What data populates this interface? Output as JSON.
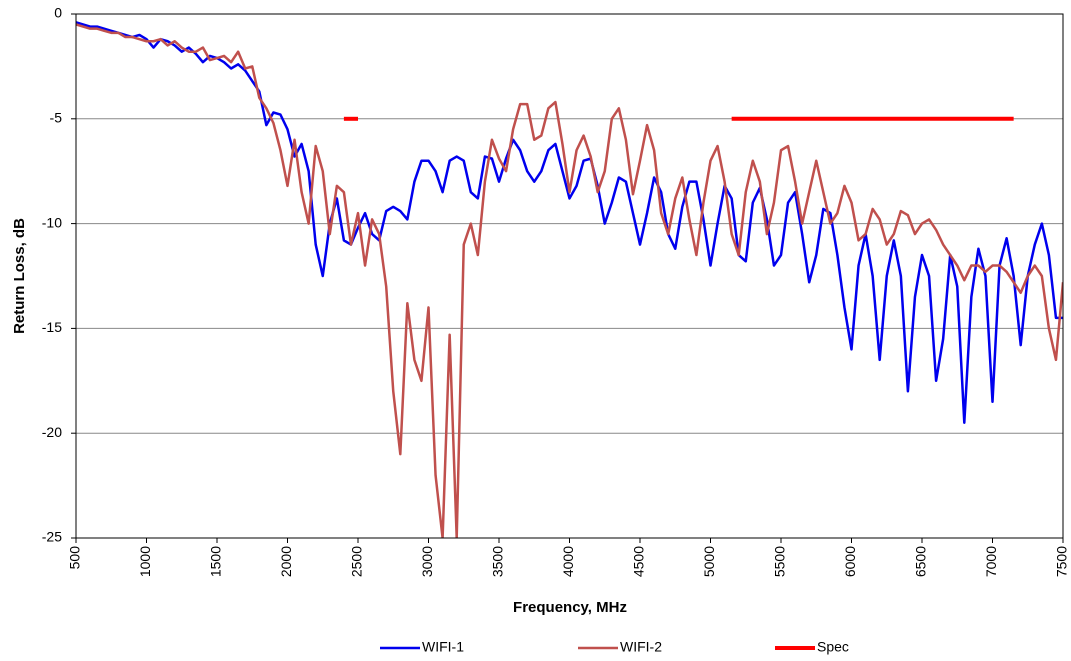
{
  "chart_data": {
    "type": "line",
    "xlabel": "Frequency, MHz",
    "ylabel": "Return Loss, dB",
    "x": [
      500,
      550,
      600,
      650,
      700,
      750,
      800,
      850,
      900,
      950,
      1000,
      1050,
      1100,
      1150,
      1200,
      1250,
      1300,
      1350,
      1400,
      1450,
      1500,
      1550,
      1600,
      1650,
      1700,
      1750,
      1800,
      1850,
      1900,
      1950,
      2000,
      2050,
      2100,
      2150,
      2200,
      2250,
      2300,
      2350,
      2400,
      2450,
      2500,
      2550,
      2600,
      2650,
      2700,
      2750,
      2800,
      2850,
      2900,
      2950,
      3000,
      3050,
      3100,
      3150,
      3200,
      3250,
      3300,
      3350,
      3400,
      3450,
      3500,
      3550,
      3600,
      3650,
      3700,
      3750,
      3800,
      3850,
      3900,
      3950,
      4000,
      4050,
      4100,
      4150,
      4200,
      4250,
      4300,
      4350,
      4400,
      4450,
      4500,
      4550,
      4600,
      4650,
      4700,
      4750,
      4800,
      4850,
      4900,
      4950,
      5000,
      5050,
      5100,
      5150,
      5200,
      5250,
      5300,
      5350,
      5400,
      5450,
      5500,
      5550,
      5600,
      5650,
      5700,
      5750,
      5800,
      5850,
      5900,
      5950,
      6000,
      6050,
      6100,
      6150,
      6200,
      6250,
      6300,
      6350,
      6400,
      6450,
      6500,
      6550,
      6600,
      6650,
      6700,
      6750,
      6800,
      6850,
      6900,
      6950,
      7000,
      7050,
      7100,
      7150,
      7200,
      7250,
      7300,
      7350,
      7400,
      7450,
      7500
    ],
    "series": [
      {
        "name": "WIFI-1",
        "color": "#0000ee",
        "width": 2.5,
        "values": [
          -0.4,
          -0.5,
          -0.6,
          -0.6,
          -0.7,
          -0.8,
          -0.9,
          -1.0,
          -1.1,
          -1.0,
          -1.2,
          -1.6,
          -1.2,
          -1.3,
          -1.5,
          -1.8,
          -1.6,
          -1.9,
          -2.3,
          -2.0,
          -2.1,
          -2.3,
          -2.6,
          -2.4,
          -2.7,
          -3.2,
          -3.7,
          -5.3,
          -4.7,
          -4.8,
          -5.5,
          -6.8,
          -6.2,
          -7.5,
          -11.0,
          -12.5,
          -10.0,
          -8.8,
          -10.8,
          -11.0,
          -10.2,
          -9.5,
          -10.5,
          -10.8,
          -9.4,
          -9.2,
          -9.4,
          -9.8,
          -8.0,
          -7.0,
          -7.0,
          -7.5,
          -8.5,
          -7.0,
          -6.8,
          -7.0,
          -8.5,
          -8.8,
          -6.8,
          -6.9,
          -8.0,
          -6.9,
          -6.0,
          -6.5,
          -7.5,
          -8.0,
          -7.5,
          -6.5,
          -6.2,
          -7.5,
          -8.8,
          -8.2,
          -7.0,
          -6.9,
          -8.2,
          -10.0,
          -9.0,
          -7.8,
          -8.0,
          -9.5,
          -11.0,
          -9.5,
          -7.8,
          -8.5,
          -10.5,
          -11.2,
          -9.2,
          -8.0,
          -8.0,
          -9.8,
          -12.0,
          -10.0,
          -8.2,
          -8.8,
          -11.5,
          -11.8,
          -9.0,
          -8.3,
          -9.8,
          -12.0,
          -11.5,
          -9.0,
          -8.5,
          -10.5,
          -12.8,
          -11.5,
          -9.3,
          -9.5,
          -11.5,
          -14.0,
          -16.0,
          -12.0,
          -10.5,
          -12.5,
          -16.5,
          -12.5,
          -10.8,
          -12.5,
          -18.0,
          -13.5,
          -11.5,
          -12.5,
          -17.5,
          -15.5,
          -11.5,
          -13.0,
          -19.5,
          -13.5,
          -11.2,
          -12.5,
          -18.5,
          -12.0,
          -10.7,
          -12.5,
          -15.8,
          -12.5,
          -11.0,
          -10.0,
          -11.5,
          -14.5,
          -14.5
        ]
      },
      {
        "name": "WIFI-2",
        "color": "#c0504d",
        "width": 2.5,
        "values": [
          -0.5,
          -0.6,
          -0.7,
          -0.7,
          -0.8,
          -0.9,
          -0.9,
          -1.1,
          -1.1,
          -1.2,
          -1.3,
          -1.3,
          -1.2,
          -1.5,
          -1.3,
          -1.6,
          -1.8,
          -1.8,
          -1.6,
          -2.2,
          -2.1,
          -2.0,
          -2.3,
          -1.8,
          -2.6,
          -2.5,
          -4.0,
          -4.5,
          -5.2,
          -6.5,
          -8.2,
          -6.0,
          -8.5,
          -10.0,
          -6.3,
          -7.5,
          -10.5,
          -8.2,
          -8.5,
          -11.0,
          -9.5,
          -12.0,
          -9.8,
          -10.5,
          -13.0,
          -18.0,
          -21.0,
          -13.8,
          -16.5,
          -17.5,
          -14.0,
          -22.0,
          -25.0,
          -15.3,
          -25.0,
          -11.0,
          -10.0,
          -11.5,
          -8.0,
          -6.0,
          -6.9,
          -7.5,
          -5.5,
          -4.3,
          -4.3,
          -6.0,
          -5.8,
          -4.5,
          -4.2,
          -6.2,
          -8.5,
          -6.5,
          -5.8,
          -6.8,
          -8.5,
          -7.5,
          -5.0,
          -4.5,
          -6.0,
          -8.6,
          -7.0,
          -5.3,
          -6.5,
          -9.5,
          -10.5,
          -8.8,
          -7.8,
          -9.8,
          -11.5,
          -9.0,
          -7.0,
          -6.3,
          -8.0,
          -10.5,
          -11.5,
          -8.5,
          -7.0,
          -8.0,
          -10.5,
          -9.0,
          -6.5,
          -6.3,
          -8.0,
          -10.0,
          -8.5,
          -7.0,
          -8.5,
          -10.0,
          -9.5,
          -8.2,
          -9.0,
          -10.8,
          -10.5,
          -9.3,
          -9.8,
          -11.0,
          -10.5,
          -9.4,
          -9.6,
          -10.5,
          -10.0,
          -9.8,
          -10.3,
          -11.0,
          -11.5,
          -12.0,
          -12.7,
          -12.0,
          -12.0,
          -12.3,
          -12.0,
          -12.0,
          -12.3,
          -12.8,
          -13.3,
          -12.5,
          -12.0,
          -12.5,
          -15.0,
          -16.5,
          -12.8
        ]
      },
      {
        "name": "Spec",
        "color": "#ff0000",
        "width": 4,
        "values": [
          null,
          null,
          null,
          null,
          null,
          null,
          null,
          null,
          null,
          null,
          null,
          null,
          null,
          null,
          null,
          null,
          null,
          null,
          null,
          null,
          null,
          null,
          null,
          null,
          null,
          null,
          null,
          null,
          null,
          null,
          null,
          null,
          null,
          null,
          null,
          null,
          null,
          null,
          -5,
          -5,
          -5,
          null,
          null,
          null,
          null,
          null,
          null,
          null,
          null,
          null,
          null,
          null,
          null,
          null,
          null,
          null,
          null,
          null,
          null,
          null,
          null,
          null,
          null,
          null,
          null,
          null,
          null,
          null,
          null,
          null,
          null,
          null,
          null,
          null,
          null,
          null,
          null,
          null,
          null,
          null,
          null,
          null,
          null,
          null,
          null,
          null,
          null,
          null,
          null,
          null,
          null,
          null,
          null,
          -5,
          -5,
          -5,
          -5,
          -5,
          -5,
          -5,
          -5,
          -5,
          -5,
          -5,
          -5,
          -5,
          -5,
          -5,
          -5,
          -5,
          -5,
          -5,
          -5,
          -5,
          -5,
          -5,
          -5,
          -5,
          -5,
          -5,
          -5,
          -5,
          -5,
          -5,
          -5,
          -5,
          -5,
          -5,
          -5,
          -5,
          -5,
          -5,
          -5,
          -5,
          null,
          null,
          null,
          null,
          null,
          null,
          null
        ]
      }
    ],
    "xlim": [
      500,
      7500
    ],
    "xticks": [
      500,
      1000,
      1500,
      2000,
      2500,
      3000,
      3500,
      4000,
      4500,
      5000,
      5500,
      6000,
      6500,
      7000,
      7500
    ],
    "ylim": [
      -25,
      0
    ],
    "yticks": [
      0,
      -5,
      -10,
      -15,
      -20,
      -25
    ],
    "grid": true,
    "legend": "bottom"
  }
}
